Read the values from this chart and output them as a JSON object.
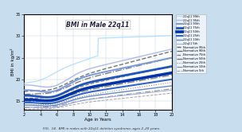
{
  "title": "BMI in Male 22q11",
  "xlabel": "Age in Years",
  "ylabel": "BMI in kg/m²",
  "caption": "FIG.  14.  BMI in males with 22q11 deletion syndrome, ages 2–20 years.",
  "xlim": [
    2,
    20
  ],
  "ylim": [
    13,
    35
  ],
  "xticks": [
    2,
    4,
    6,
    8,
    10,
    12,
    14,
    16,
    18,
    20
  ],
  "yticks": [
    15,
    20,
    25,
    30,
    35
  ],
  "background_color": "#c8dded",
  "plot_bg_color": "#ffffff",
  "grid_color": "#bbccdd",
  "q22_labels": [
    "22q11 95th",
    "22q11 90th",
    "22q11 75th",
    "22q11 50th",
    "22q11 25th",
    "22q11 10th",
    "22q11 5th"
  ],
  "norm_labels": [
    "Normative 95th",
    "Normative 90th",
    "Normative 75th",
    "Normative 50th",
    "Normative 25th",
    "Normative 10th",
    "Normative 5th"
  ],
  "q22_colors": [
    "#aabbee",
    "#7799dd",
    "#2255bb",
    "#0033aa",
    "#3366cc",
    "#6688cc",
    "#99aadd"
  ],
  "q22_lws": [
    1.0,
    1.4,
    2.0,
    2.6,
    1.5,
    1.0,
    0.7
  ],
  "norm_colors": [
    "#666666",
    "#666666",
    "#777777",
    "#777777",
    "#888888",
    "#888888",
    "#999999"
  ],
  "norm_lws": [
    1.0,
    0.9,
    0.9,
    1.0,
    0.8,
    0.8,
    0.7
  ],
  "norm_styles": [
    "--",
    "-.",
    "--",
    "-.",
    ":",
    "-.",
    "--"
  ]
}
